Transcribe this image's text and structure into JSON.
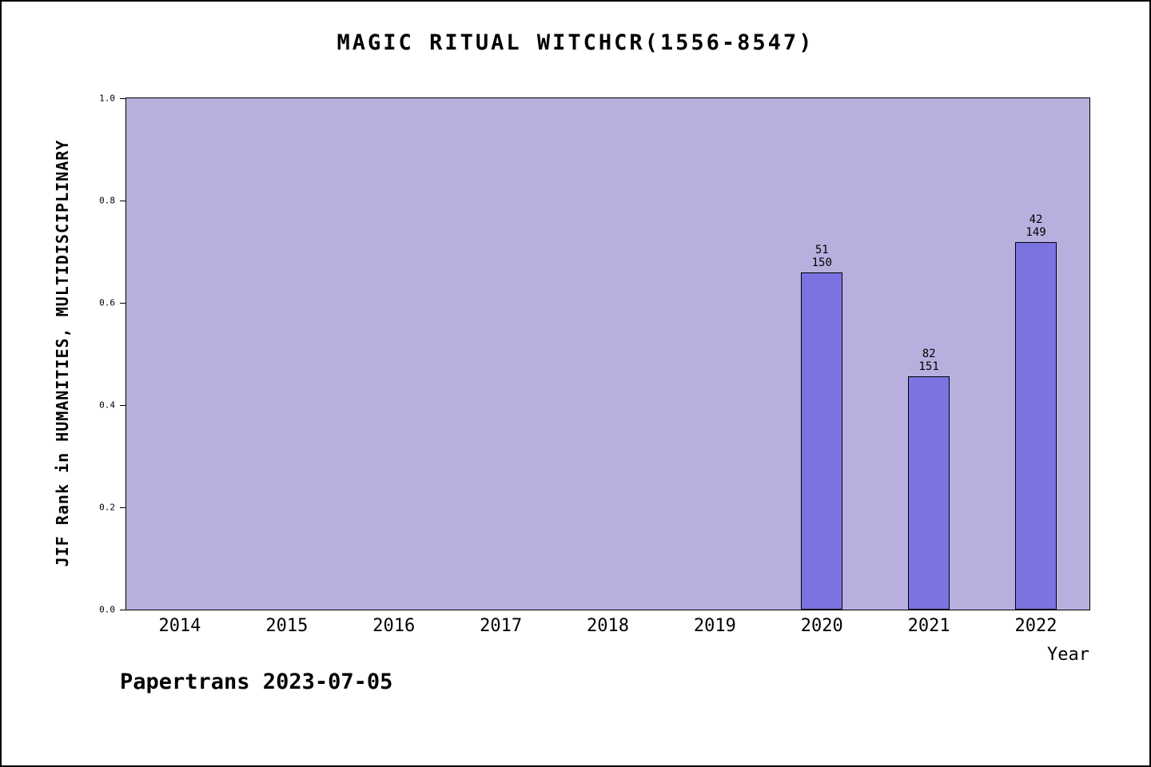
{
  "title": "MAGIC RITUAL WITCHCR(1556-8547)",
  "footer": "Papertrans 2023-07-05",
  "chart_data": {
    "type": "bar",
    "title": "MAGIC RITUAL WITCHCR(1556-8547)",
    "xlabel": "Year",
    "ylabel": "JIF Rank in HUMANITIES, MULTIDISCIPLINARY",
    "ylim": [
      0.0,
      1.0
    ],
    "ytick_labels": [
      "0.0",
      "0.2",
      "0.4",
      "0.6",
      "0.8",
      "1.0"
    ],
    "categories": [
      "2014",
      "2015",
      "2016",
      "2017",
      "2018",
      "2019",
      "2020",
      "2021",
      "2022"
    ],
    "bars": [
      {
        "year": "2020",
        "rank": "51",
        "total": "150",
        "value": 0.66
      },
      {
        "year": "2021",
        "rank": "82",
        "total": "151",
        "value": 0.457
      },
      {
        "year": "2022",
        "rank": "42",
        "total": "149",
        "value": 0.718
      }
    ],
    "grid": false,
    "legend": false,
    "colors": {
      "plot_background": "#b7b0de",
      "bar_fill": "#7b73e0",
      "bar_edge": "#000000"
    }
  }
}
